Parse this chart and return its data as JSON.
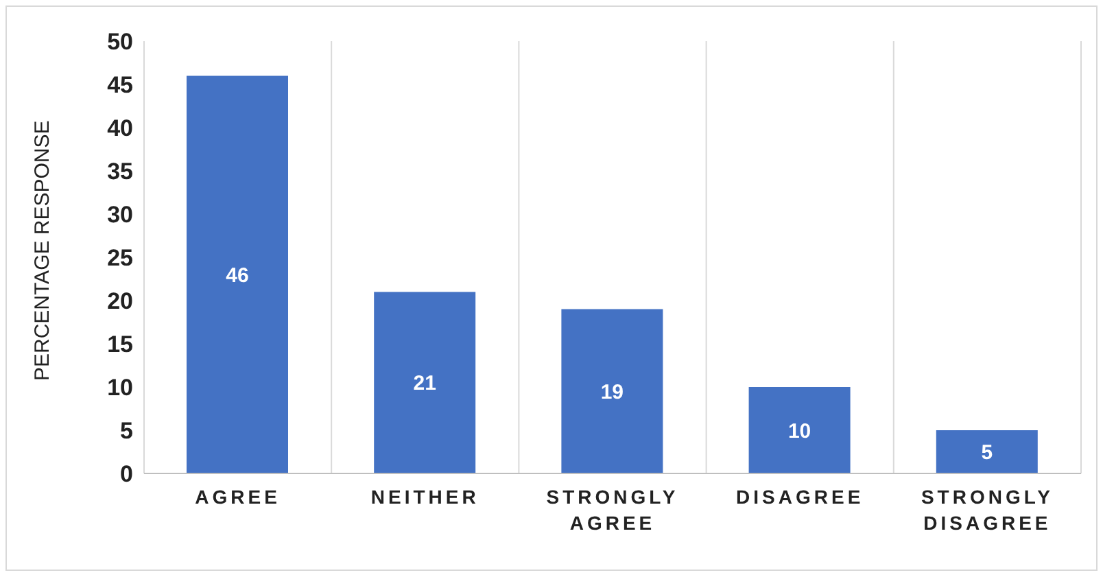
{
  "chart_data": {
    "type": "bar",
    "ylabel": "PERCENTAGE RESPONSE",
    "categories": [
      "AGREE",
      "NEITHER",
      "STRONGLY AGREE",
      "DISAGREE",
      "STRONGLY DISAGREE"
    ],
    "values": [
      46,
      21,
      19,
      10,
      5
    ],
    "color": "#4472c4",
    "ylim": [
      0,
      50
    ],
    "yticks": [
      0,
      5,
      10,
      15,
      20,
      25,
      30,
      35,
      40,
      45,
      50
    ],
    "grid": "x",
    "data_labels": true,
    "legend": false
  }
}
